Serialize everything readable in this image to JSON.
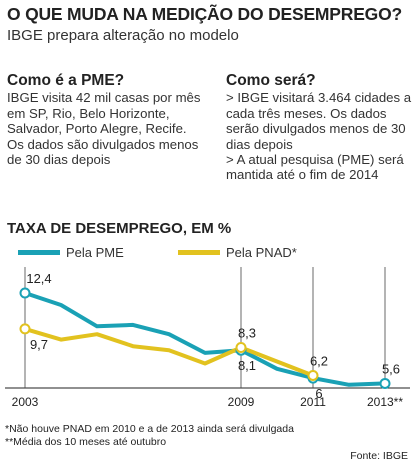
{
  "header": {
    "title": "O QUE MUDA NA MEDIÇÃO DO DESEMPREGO?",
    "subtitle": "IBGE prepara alteração no modelo"
  },
  "left_column": {
    "heading": "Como é a PME?",
    "body": "IBGE visita 42 mil casas por mês em SP, Rio, Belo Horizonte, Salvador, Porto Alegre, Recife. Os dados são divulgados menos de 30 dias depois"
  },
  "right_column": {
    "heading": "Como será?",
    "item1": "> IBGE visitará 3.464 cidades a cada três meses. Os dados serão divulgados menos de 30 dias depois",
    "item2": "> A atual pesquisa (PME) será mantida até o fim de 2014"
  },
  "chart_data": {
    "type": "line",
    "title": "TAXA DE DESEMPREGO, EM %",
    "xlabel": "",
    "ylabel": "",
    "x_ticks": [
      "2003",
      "2009",
      "2011",
      "2013**"
    ],
    "xlim": [
      2003,
      2013.6
    ],
    "ylim": [
      5,
      13
    ],
    "grid": false,
    "legend_position": "top",
    "series": [
      {
        "name": "Pela PME",
        "color": "#1aa1b5",
        "x": [
          2003,
          2004,
          2005,
          2006,
          2007,
          2008,
          2009,
          2010,
          2011,
          2012,
          2013
        ],
        "y": [
          12.4,
          11.5,
          9.9,
          10.0,
          9.3,
          7.9,
          8.1,
          6.7,
          6.0,
          5.5,
          5.6
        ]
      },
      {
        "name": "Pela PNAD*",
        "color": "#e2c21f",
        "x": [
          2003,
          2004,
          2005,
          2006,
          2007,
          2008,
          2009,
          2011
        ],
        "y": [
          9.7,
          8.9,
          9.3,
          8.4,
          8.1,
          7.1,
          8.3,
          6.2
        ]
      }
    ],
    "point_labels": [
      {
        "series": 0,
        "x": 2003,
        "text": "12,4",
        "pos": "above"
      },
      {
        "series": 1,
        "x": 2003,
        "text": "9,7",
        "pos": "below"
      },
      {
        "series": 1,
        "x": 2009,
        "text": "8,3",
        "pos": "above"
      },
      {
        "series": 0,
        "x": 2009,
        "text": "8,1",
        "pos": "below"
      },
      {
        "series": 1,
        "x": 2011,
        "text": "6,2",
        "pos": "above"
      },
      {
        "series": 0,
        "x": 2011,
        "text": "6",
        "pos": "below"
      },
      {
        "series": 0,
        "x": 2013,
        "text": "5,6",
        "pos": "above"
      }
    ],
    "markers": [
      {
        "series": 0,
        "x": 2003
      },
      {
        "series": 1,
        "x": 2003
      },
      {
        "series": 0,
        "x": 2009
      },
      {
        "series": 1,
        "x": 2009
      },
      {
        "series": 0,
        "x": 2011
      },
      {
        "series": 1,
        "x": 2011
      },
      {
        "series": 0,
        "x": 2013
      }
    ]
  },
  "footnotes": {
    "note1": "*Não houve PNAD em 2010 e a de 2013 ainda será divulgada",
    "note2": "**Média dos 10 meses até outubro",
    "source": "Fonte: IBGE"
  }
}
